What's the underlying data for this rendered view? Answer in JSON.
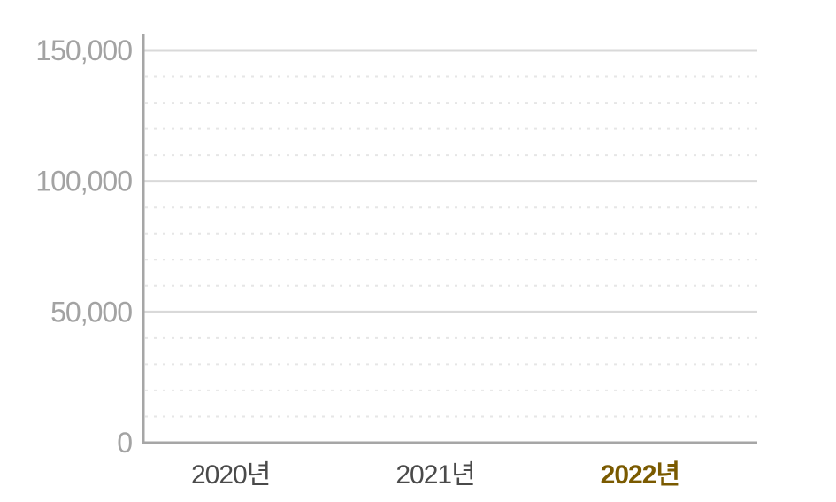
{
  "chart_data": {
    "type": "bar",
    "title": "",
    "xlabel": "",
    "ylabel": "",
    "categories": [
      "2020년",
      "2021년",
      "2022년"
    ],
    "highlight_category": "2022년",
    "values": [
      0,
      0,
      0
    ],
    "ylim": [
      0,
      150000
    ],
    "y_ticks": [
      0,
      50000,
      100000,
      150000
    ],
    "y_tick_labels": [
      "0",
      "50,000",
      "100,000",
      "150,000"
    ],
    "grid": true,
    "minor_grid": true,
    "colors": {
      "axis": "#a6a6a6",
      "major_grid": "#d9d9d9",
      "minor_grid": "#e6e6e6",
      "tick_text": "#a3a3a3",
      "category_text": "#4a4a4a",
      "highlight_text": "#7a5a00"
    }
  }
}
